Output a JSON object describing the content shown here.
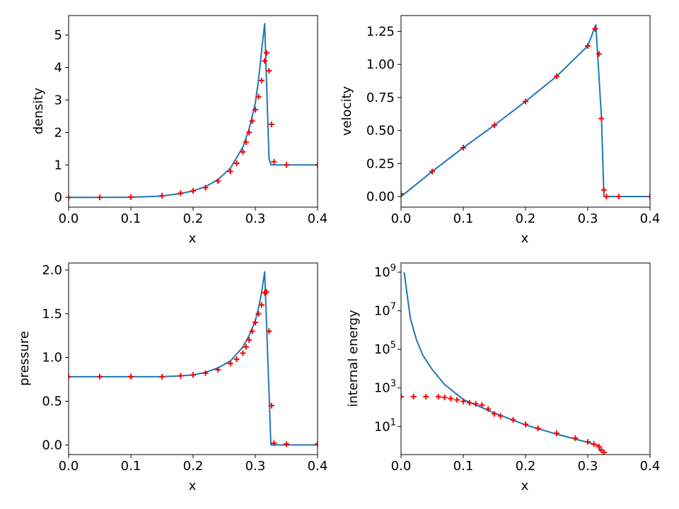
{
  "figure": {
    "colors": {
      "analytic": "#1f77b4",
      "numeric": "#ff0000"
    }
  },
  "chart_data": [
    {
      "type": "line",
      "xlabel": "x",
      "ylabel": "density",
      "xlim": [
        0.0,
        0.4
      ],
      "ylim": [
        -0.3,
        5.6
      ],
      "yscale": "linear",
      "xticks": [
        0.0,
        0.1,
        0.2,
        0.3,
        0.4
      ],
      "xtick_labels": [
        "0.0",
        "0.1",
        "0.2",
        "0.3",
        "0.4"
      ],
      "yticks": [
        0,
        1,
        2,
        3,
        4,
        5
      ],
      "ytick_labels": [
        "0",
        "1",
        "2",
        "3",
        "4",
        "5"
      ],
      "series": [
        {
          "style": "line",
          "x": [
            0.0,
            0.05,
            0.1,
            0.15,
            0.18,
            0.2,
            0.22,
            0.24,
            0.26,
            0.28,
            0.29,
            0.3,
            0.305,
            0.31,
            0.315,
            0.322,
            0.325,
            0.35,
            0.4
          ],
          "y": [
            0.0,
            0.0,
            0.005,
            0.04,
            0.12,
            0.2,
            0.33,
            0.55,
            0.9,
            1.55,
            2.1,
            2.9,
            3.6,
            4.5,
            5.35,
            1.2,
            1.0,
            1.0,
            1.0
          ]
        },
        {
          "style": "markers",
          "marker": "+",
          "x": [
            0.0,
            0.05,
            0.1,
            0.15,
            0.18,
            0.2,
            0.22,
            0.24,
            0.26,
            0.27,
            0.28,
            0.285,
            0.29,
            0.295,
            0.3,
            0.305,
            0.31,
            0.315,
            0.318,
            0.322,
            0.326,
            0.33,
            0.35,
            0.4
          ],
          "y": [
            0.0,
            0.0,
            0.01,
            0.05,
            0.13,
            0.2,
            0.3,
            0.5,
            0.8,
            1.05,
            1.4,
            1.7,
            2.0,
            2.35,
            2.7,
            3.1,
            3.6,
            4.2,
            4.45,
            3.9,
            2.25,
            1.1,
            1.0,
            1.0
          ]
        }
      ]
    },
    {
      "type": "line",
      "xlabel": "x",
      "ylabel": "velocity",
      "xlim": [
        0.0,
        0.4
      ],
      "ylim": [
        -0.08,
        1.37
      ],
      "yscale": "linear",
      "xticks": [
        0.0,
        0.1,
        0.2,
        0.3,
        0.4
      ],
      "xtick_labels": [
        "0.0",
        "0.1",
        "0.2",
        "0.3",
        "0.4"
      ],
      "yticks": [
        0.0,
        0.25,
        0.5,
        0.75,
        1.0,
        1.25
      ],
      "ytick_labels": [
        "0.00",
        "0.25",
        "0.50",
        "0.75",
        "1.00",
        "1.25"
      ],
      "series": [
        {
          "style": "line",
          "x": [
            0.0,
            0.05,
            0.1,
            0.15,
            0.2,
            0.25,
            0.3,
            0.313,
            0.322,
            0.326,
            0.33,
            0.4
          ],
          "y": [
            0.0,
            0.19,
            0.37,
            0.54,
            0.72,
            0.91,
            1.14,
            1.3,
            0.6,
            0.0,
            0.0,
            0.0
          ]
        },
        {
          "style": "markers",
          "marker": "+",
          "x": [
            0.0,
            0.05,
            0.1,
            0.15,
            0.2,
            0.25,
            0.3,
            0.312,
            0.318,
            0.322,
            0.326,
            0.33,
            0.35,
            0.4
          ],
          "y": [
            0.02,
            0.19,
            0.37,
            0.54,
            0.72,
            0.91,
            1.14,
            1.27,
            1.08,
            0.59,
            0.05,
            0.0,
            0.0,
            0.0
          ]
        }
      ]
    },
    {
      "type": "line",
      "xlabel": "x",
      "ylabel": "pressure",
      "xlim": [
        0.0,
        0.4
      ],
      "ylim": [
        -0.11,
        2.08
      ],
      "yscale": "linear",
      "xticks": [
        0.0,
        0.1,
        0.2,
        0.3,
        0.4
      ],
      "xtick_labels": [
        "0.0",
        "0.1",
        "0.2",
        "0.3",
        "0.4"
      ],
      "yticks": [
        0.0,
        0.5,
        1.0,
        1.5,
        2.0
      ],
      "ytick_labels": [
        "0.0",
        "0.5",
        "1.0",
        "1.5",
        "2.0"
      ],
      "series": [
        {
          "style": "line",
          "x": [
            0.0,
            0.1,
            0.15,
            0.18,
            0.2,
            0.22,
            0.24,
            0.26,
            0.28,
            0.29,
            0.3,
            0.305,
            0.31,
            0.315,
            0.322,
            0.325,
            0.35,
            0.4
          ],
          "y": [
            0.78,
            0.78,
            0.78,
            0.79,
            0.8,
            0.83,
            0.88,
            0.96,
            1.12,
            1.25,
            1.42,
            1.56,
            1.74,
            1.98,
            0.6,
            0.0,
            0.0,
            0.0
          ]
        },
        {
          "style": "markers",
          "marker": "+",
          "x": [
            0.0,
            0.05,
            0.1,
            0.15,
            0.18,
            0.2,
            0.22,
            0.24,
            0.26,
            0.27,
            0.28,
            0.285,
            0.29,
            0.295,
            0.3,
            0.305,
            0.31,
            0.315,
            0.318,
            0.322,
            0.326,
            0.33,
            0.35,
            0.4
          ],
          "y": [
            0.78,
            0.78,
            0.78,
            0.78,
            0.79,
            0.8,
            0.82,
            0.86,
            0.93,
            0.98,
            1.05,
            1.12,
            1.2,
            1.3,
            1.4,
            1.5,
            1.6,
            1.74,
            1.75,
            1.3,
            0.45,
            0.02,
            0.01,
            0.01
          ]
        }
      ]
    },
    {
      "type": "line",
      "xlabel": "x",
      "ylabel": "internal energy",
      "xlim": [
        0.0,
        0.4
      ],
      "ylim": [
        0.35,
        3000000000
      ],
      "yscale": "log",
      "xticks": [
        0.0,
        0.1,
        0.2,
        0.3,
        0.4
      ],
      "xtick_labels": [
        "0.0",
        "0.1",
        "0.2",
        "0.3",
        "0.4"
      ],
      "yticks": [
        10,
        1000,
        100000,
        10000000,
        1000000000
      ],
      "ytick_labels": [
        "10",
        "10",
        "10",
        "10",
        "10"
      ],
      "ytick_exponents": [
        "1",
        "3",
        "5",
        "7",
        "9"
      ],
      "series": [
        {
          "style": "line",
          "x": [
            0.005,
            0.015,
            0.025,
            0.035,
            0.05,
            0.07,
            0.1,
            0.15,
            0.2,
            0.25,
            0.3,
            0.318,
            0.32
          ],
          "y": [
            1000000000,
            4000000,
            300000,
            50000,
            9000,
            1500,
            250,
            50,
            12,
            4,
            1.5,
            1.0,
            0.5
          ]
        },
        {
          "style": "markers",
          "marker": "+",
          "x": [
            0.0,
            0.02,
            0.04,
            0.06,
            0.07,
            0.08,
            0.09,
            0.1,
            0.11,
            0.12,
            0.13,
            0.14,
            0.15,
            0.16,
            0.18,
            0.2,
            0.22,
            0.25,
            0.28,
            0.3,
            0.31,
            0.318,
            0.322,
            0.326
          ],
          "y": [
            350,
            350,
            350,
            350,
            320,
            280,
            240,
            200,
            170,
            150,
            130,
            80,
            45,
            35,
            22,
            13,
            8,
            4.5,
            2.5,
            1.6,
            1.2,
            0.9,
            0.6,
            0.45
          ]
        }
      ]
    }
  ]
}
